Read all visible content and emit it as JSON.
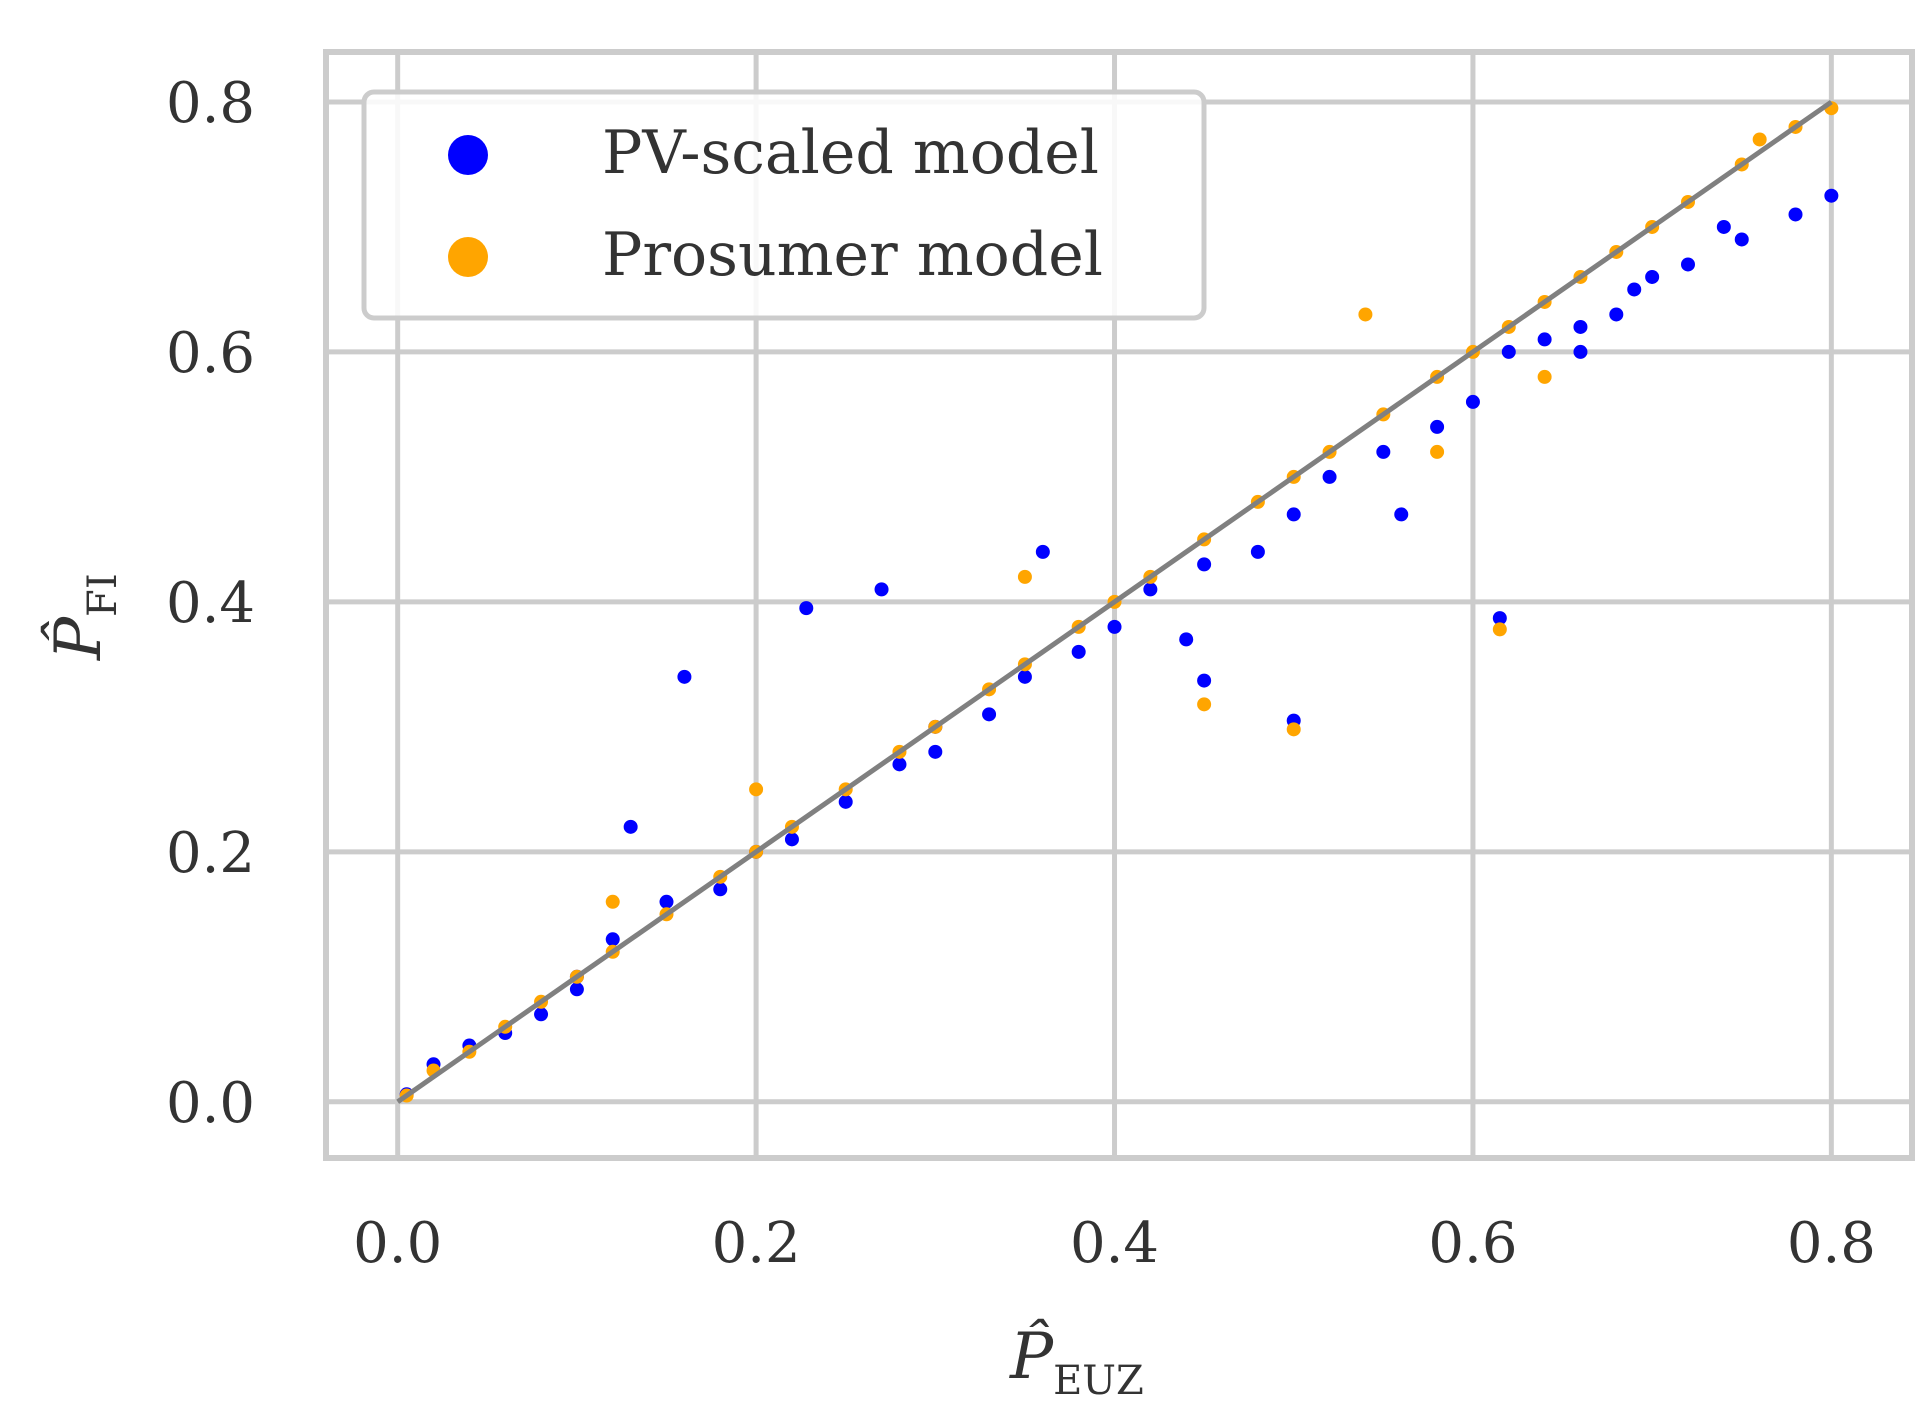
{
  "chart_data": {
    "type": "scatter",
    "title": "",
    "xlabel": "P̂",
    "xlabel_sub": "EUZ",
    "ylabel": "P̂",
    "ylabel_sub": "FI",
    "xlim": [
      -0.04,
      0.845
    ],
    "ylim": [
      -0.045,
      0.84
    ],
    "xticks": [
      0.0,
      0.2,
      0.4,
      0.6,
      0.8
    ],
    "yticks": [
      0.0,
      0.2,
      0.4,
      0.6,
      0.8
    ],
    "xtick_labels": [
      "0.0",
      "0.2",
      "0.4",
      "0.6",
      "0.8"
    ],
    "ytick_labels": [
      "0.0",
      "0.2",
      "0.4",
      "0.6",
      "0.8"
    ],
    "grid": true,
    "legend_position": "top-left",
    "reference_line": {
      "name": "y = x",
      "x": [
        0.0,
        0.8
      ],
      "y": [
        0.0,
        0.8
      ],
      "color": "#808080"
    },
    "series": [
      {
        "name": "PV-scaled model",
        "color": "#0000ff",
        "x": [
          0.005,
          0.02,
          0.04,
          0.06,
          0.08,
          0.1,
          0.12,
          0.15,
          0.18,
          0.2,
          0.22,
          0.25,
          0.28,
          0.3,
          0.33,
          0.35,
          0.38,
          0.4,
          0.42,
          0.45,
          0.48,
          0.5,
          0.52,
          0.55,
          0.58,
          0.6,
          0.62,
          0.64,
          0.66,
          0.68,
          0.7,
          0.72,
          0.75,
          0.78,
          0.8,
          0.16,
          0.228,
          0.615,
          0.5,
          0.45,
          0.13,
          0.27,
          0.36,
          0.44,
          0.56,
          0.66,
          0.69,
          0.74,
          0.3,
          0.1
        ],
        "y": [
          0.006,
          0.03,
          0.045,
          0.055,
          0.07,
          0.09,
          0.13,
          0.16,
          0.17,
          0.2,
          0.21,
          0.24,
          0.27,
          0.3,
          0.31,
          0.34,
          0.36,
          0.38,
          0.41,
          0.43,
          0.44,
          0.47,
          0.5,
          0.52,
          0.54,
          0.56,
          0.6,
          0.61,
          0.62,
          0.63,
          0.66,
          0.67,
          0.69,
          0.71,
          0.725,
          0.34,
          0.395,
          0.387,
          0.305,
          0.337,
          0.22,
          0.41,
          0.44,
          0.37,
          0.47,
          0.6,
          0.65,
          0.7,
          0.28,
          0.1
        ]
      },
      {
        "name": "Prosumer model",
        "color": "#ffa500",
        "x": [
          0.005,
          0.02,
          0.04,
          0.06,
          0.08,
          0.1,
          0.12,
          0.15,
          0.18,
          0.2,
          0.22,
          0.25,
          0.28,
          0.3,
          0.33,
          0.35,
          0.38,
          0.4,
          0.42,
          0.45,
          0.48,
          0.5,
          0.52,
          0.55,
          0.58,
          0.6,
          0.62,
          0.64,
          0.66,
          0.68,
          0.7,
          0.72,
          0.75,
          0.78,
          0.8,
          0.615,
          0.5,
          0.45,
          0.12,
          0.35,
          0.54,
          0.64,
          0.76,
          0.2,
          0.58
        ],
        "y": [
          0.005,
          0.025,
          0.04,
          0.06,
          0.08,
          0.1,
          0.12,
          0.15,
          0.18,
          0.2,
          0.22,
          0.25,
          0.28,
          0.3,
          0.33,
          0.35,
          0.38,
          0.4,
          0.42,
          0.45,
          0.48,
          0.5,
          0.52,
          0.55,
          0.58,
          0.6,
          0.62,
          0.64,
          0.66,
          0.68,
          0.7,
          0.72,
          0.75,
          0.78,
          0.795,
          0.378,
          0.298,
          0.318,
          0.16,
          0.42,
          0.63,
          0.58,
          0.77,
          0.25,
          0.52
        ]
      }
    ]
  }
}
